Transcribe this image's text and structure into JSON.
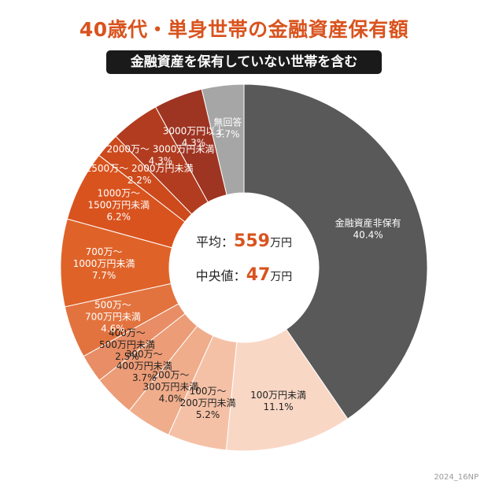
{
  "chart_data": {
    "type": "pie",
    "title": "40歳代・単身世帯の金融資産保有額",
    "subtitle": "金融資産を保有していない世帯を含む",
    "slices": [
      {
        "label": "金融資産非保有",
        "value": 40.4,
        "value_label": "40.4%",
        "color": "#595959",
        "text_color": "#ffffff"
      },
      {
        "label": "100万円未満",
        "value": 11.1,
        "value_label": "11.1%",
        "color": "#f9d7c5",
        "text_color": "#222222"
      },
      {
        "label": "100万〜\n200万円未満",
        "value": 5.2,
        "value_label": "5.2%",
        "color": "#f5c1a6",
        "text_color": "#222222"
      },
      {
        "label": "200万〜\n300万円未満",
        "value": 4.0,
        "value_label": "4.0%",
        "color": "#f0ad8b",
        "text_color": "#222222"
      },
      {
        "label": "300万〜\n400万円未満",
        "value": 3.7,
        "value_label": "3.7%",
        "color": "#ec9c77",
        "text_color": "#222222"
      },
      {
        "label": "400万〜\n500万円未満",
        "value": 2.5,
        "value_label": "2.5%",
        "color": "#e88d65",
        "text_color": "#222222"
      },
      {
        "label": "500万〜\n700万円未満",
        "value": 4.6,
        "value_label": "4.6%",
        "color": "#e2733f",
        "text_color": "#ffffff"
      },
      {
        "label": "700万〜\n1000万円未満",
        "value": 7.7,
        "value_label": "7.7%",
        "color": "#df6329",
        "text_color": "#ffffff"
      },
      {
        "label": "1000万〜\n1500万円未満",
        "value": 6.2,
        "value_label": "6.2%",
        "color": "#d9531e",
        "text_color": "#ffffff"
      },
      {
        "label": "1500万〜 2000万円未満",
        "value": 2.2,
        "value_label": "2.2%",
        "color": "#cc4a1c",
        "text_color": "#ffffff"
      },
      {
        "label": "2000万〜 3000万円未満",
        "value": 4.3,
        "value_label": "4.3%",
        "color": "#b23c1f",
        "text_color": "#ffffff"
      },
      {
        "label": "3000万円以上",
        "value": 4.3,
        "value_label": "4.3%",
        "color": "#9e3422",
        "text_color": "#ffffff"
      },
      {
        "label": "無回答",
        "value": 3.7,
        "value_label": "3.7%",
        "color": "#a6a6a6",
        "text_color": "#ffffff"
      }
    ],
    "center": {
      "mean_label": "平均：",
      "mean_value": "559",
      "mean_unit": "万円",
      "median_label": "中央値：",
      "median_value": "47",
      "median_unit": "万円"
    }
  },
  "footer": "2024_16NP"
}
